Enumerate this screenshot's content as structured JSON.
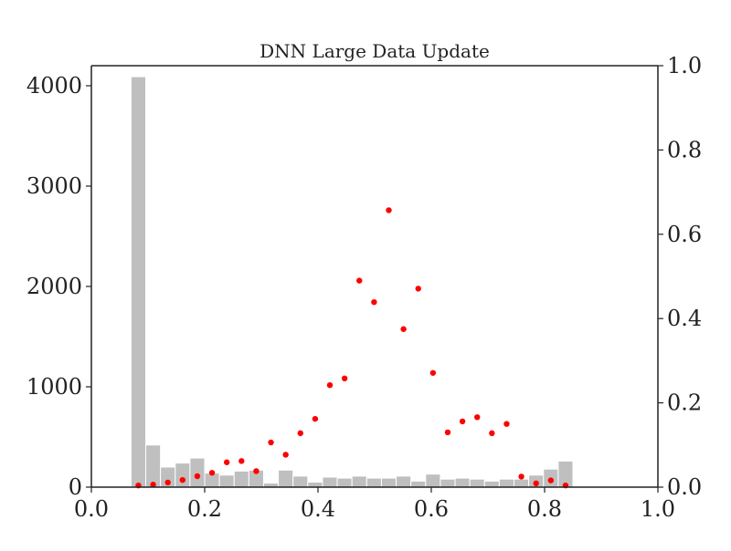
{
  "chart_data": {
    "type": "bar",
    "title": "DNN Large Data Update",
    "xlabel": "",
    "ylabel": "",
    "xlim": [
      0.0,
      1.0
    ],
    "ylim": [
      0,
      4200
    ],
    "y2lim": [
      0,
      1.0
    ],
    "grid": false,
    "legend": "none",
    "x_ticks": [
      "0.0",
      "0.2",
      "0.4",
      "0.6",
      "0.8",
      "1.0"
    ],
    "y_ticks": [
      "0",
      "1000",
      "2000",
      "3000",
      "4000"
    ],
    "y2_ticks": [
      "0.0",
      "0.2",
      "0.4",
      "0.6",
      "0.8",
      "1.0"
    ],
    "colors": {
      "bars": "#bfbfbf",
      "bar_edge": "#ffffff",
      "points": "#ff0000",
      "axis": "#222222"
    },
    "histogram": {
      "bin_width": 0.026,
      "bins": [
        {
          "x0": 0.07,
          "count": 4090
        },
        {
          "x0": 0.096,
          "count": 420
        },
        {
          "x0": 0.122,
          "count": 200
        },
        {
          "x0": 0.148,
          "count": 240
        },
        {
          "x0": 0.174,
          "count": 290
        },
        {
          "x0": 0.2,
          "count": 140
        },
        {
          "x0": 0.226,
          "count": 120
        },
        {
          "x0": 0.252,
          "count": 160
        },
        {
          "x0": 0.278,
          "count": 170
        },
        {
          "x0": 0.304,
          "count": 40
        },
        {
          "x0": 0.33,
          "count": 170
        },
        {
          "x0": 0.356,
          "count": 110
        },
        {
          "x0": 0.382,
          "count": 50
        },
        {
          "x0": 0.408,
          "count": 100
        },
        {
          "x0": 0.434,
          "count": 90
        },
        {
          "x0": 0.46,
          "count": 110
        },
        {
          "x0": 0.486,
          "count": 90
        },
        {
          "x0": 0.512,
          "count": 90
        },
        {
          "x0": 0.538,
          "count": 110
        },
        {
          "x0": 0.564,
          "count": 60
        },
        {
          "x0": 0.59,
          "count": 130
        },
        {
          "x0": 0.616,
          "count": 80
        },
        {
          "x0": 0.642,
          "count": 90
        },
        {
          "x0": 0.668,
          "count": 80
        },
        {
          "x0": 0.694,
          "count": 60
        },
        {
          "x0": 0.72,
          "count": 80
        },
        {
          "x0": 0.746,
          "count": 80
        },
        {
          "x0": 0.772,
          "count": 120
        },
        {
          "x0": 0.798,
          "count": 180
        },
        {
          "x0": 0.824,
          "count": 260
        }
      ]
    },
    "scatter": {
      "axis": "right",
      "points": [
        {
          "x": 0.083,
          "y": 0.004
        },
        {
          "x": 0.109,
          "y": 0.006
        },
        {
          "x": 0.135,
          "y": 0.011
        },
        {
          "x": 0.161,
          "y": 0.017
        },
        {
          "x": 0.187,
          "y": 0.026
        },
        {
          "x": 0.213,
          "y": 0.034
        },
        {
          "x": 0.239,
          "y": 0.059
        },
        {
          "x": 0.265,
          "y": 0.062
        },
        {
          "x": 0.291,
          "y": 0.038
        },
        {
          "x": 0.317,
          "y": 0.106
        },
        {
          "x": 0.343,
          "y": 0.077
        },
        {
          "x": 0.369,
          "y": 0.128
        },
        {
          "x": 0.395,
          "y": 0.162
        },
        {
          "x": 0.421,
          "y": 0.242
        },
        {
          "x": 0.447,
          "y": 0.258
        },
        {
          "x": 0.473,
          "y": 0.49
        },
        {
          "x": 0.499,
          "y": 0.439
        },
        {
          "x": 0.525,
          "y": 0.657
        },
        {
          "x": 0.551,
          "y": 0.375
        },
        {
          "x": 0.577,
          "y": 0.471
        },
        {
          "x": 0.603,
          "y": 0.271
        },
        {
          "x": 0.629,
          "y": 0.13
        },
        {
          "x": 0.655,
          "y": 0.156
        },
        {
          "x": 0.681,
          "y": 0.166
        },
        {
          "x": 0.707,
          "y": 0.128
        },
        {
          "x": 0.733,
          "y": 0.15
        },
        {
          "x": 0.759,
          "y": 0.025
        },
        {
          "x": 0.785,
          "y": 0.009
        },
        {
          "x": 0.811,
          "y": 0.016
        },
        {
          "x": 0.837,
          "y": 0.004
        }
      ]
    }
  }
}
